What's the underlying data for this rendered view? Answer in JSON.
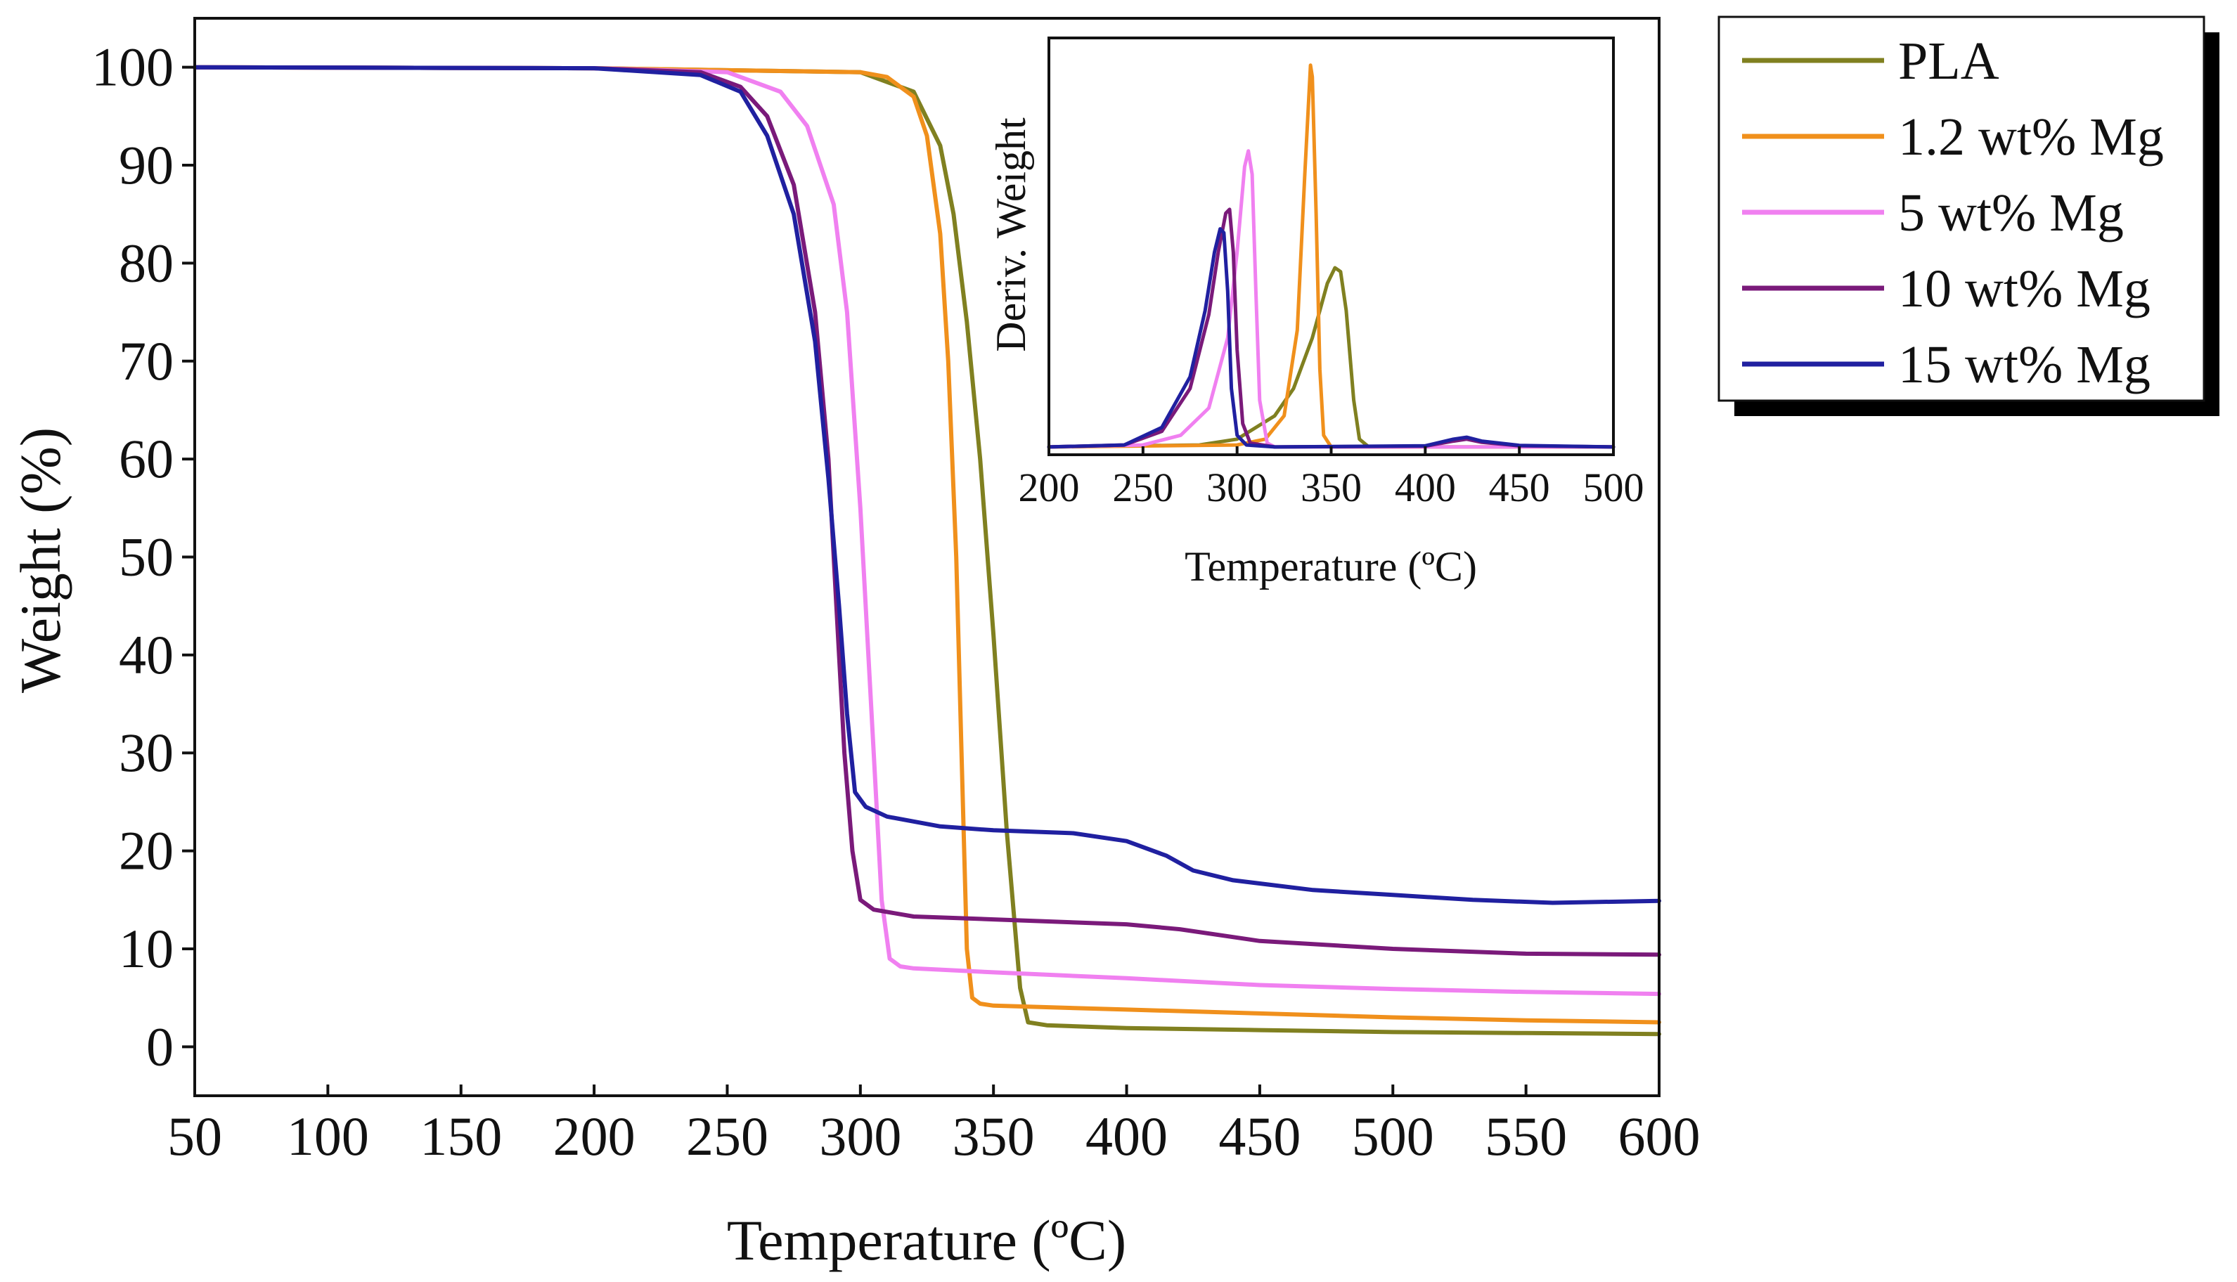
{
  "chart_data": [
    {
      "id": "main",
      "type": "line",
      "title": "",
      "xlabel": "Temperature (ºC)",
      "ylabel": "Weight (%)",
      "xlim": [
        50,
        600
      ],
      "ylim": [
        -5,
        105
      ],
      "xticks": [
        50,
        100,
        150,
        200,
        250,
        300,
        350,
        400,
        450,
        500,
        550,
        600
      ],
      "yticks": [
        0,
        10,
        20,
        30,
        40,
        50,
        60,
        70,
        80,
        90,
        100
      ],
      "grid": false,
      "series": [
        {
          "name": "PLA",
          "color": "#808020",
          "x": [
            50,
            200,
            300,
            320,
            330,
            335,
            340,
            345,
            350,
            355,
            360,
            363,
            370,
            400,
            450,
            500,
            550,
            600
          ],
          "y": [
            100,
            99.9,
            99.5,
            97.5,
            92,
            85,
            74,
            60,
            42,
            22,
            6,
            2.5,
            2.2,
            1.9,
            1.7,
            1.5,
            1.4,
            1.3
          ]
        },
        {
          "name": "1.2 wt% Mg",
          "color": "#f0901c",
          "x": [
            50,
            200,
            300,
            310,
            320,
            325,
            330,
            333,
            336,
            338,
            340,
            342,
            345,
            350,
            400,
            450,
            500,
            550,
            600
          ],
          "y": [
            100,
            99.9,
            99.5,
            99,
            97,
            93,
            83,
            70,
            50,
            30,
            10,
            5,
            4.4,
            4.2,
            3.8,
            3.4,
            3,
            2.7,
            2.5
          ]
        },
        {
          "name": "5 wt% Mg",
          "color": "#f080f0",
          "x": [
            50,
            200,
            250,
            270,
            280,
            290,
            295,
            300,
            305,
            308,
            311,
            315,
            320,
            350,
            400,
            450,
            500,
            550,
            600
          ],
          "y": [
            100,
            99.9,
            99.5,
            97.5,
            94,
            86,
            75,
            55,
            30,
            15,
            9,
            8.2,
            8,
            7.6,
            7,
            6.3,
            5.9,
            5.6,
            5.4
          ]
        },
        {
          "name": "10 wt% Mg",
          "color": "#7a1a7a",
          "x": [
            50,
            200,
            240,
            255,
            265,
            275,
            283,
            288,
            291,
            294,
            297,
            300,
            305,
            320,
            350,
            400,
            420,
            450,
            500,
            550,
            600
          ],
          "y": [
            100,
            99.9,
            99.5,
            98,
            95,
            88,
            75,
            60,
            45,
            30,
            20,
            15,
            14,
            13.3,
            13,
            12.5,
            12,
            10.8,
            10,
            9.5,
            9.4
          ]
        },
        {
          "name": "15 wt% Mg",
          "color": "#2020a0",
          "x": [
            50,
            200,
            240,
            255,
            265,
            275,
            283,
            288,
            292,
            295,
            298,
            302,
            310,
            330,
            350,
            380,
            400,
            415,
            425,
            440,
            470,
            500,
            530,
            560,
            600
          ],
          "y": [
            100,
            99.9,
            99.2,
            97.5,
            93,
            85,
            72,
            58,
            45,
            34,
            26,
            24.5,
            23.5,
            22.5,
            22.1,
            21.8,
            21,
            19.5,
            18,
            17,
            16,
            15.5,
            15,
            14.7,
            14.9
          ]
        }
      ],
      "legend_position": "outside-right"
    },
    {
      "id": "inset",
      "type": "line",
      "title": "",
      "xlabel": "Temperature (ºC)",
      "ylabel": "Deriv. Weight",
      "xlim": [
        200,
        500
      ],
      "ylim": [
        -0.02,
        1.05
      ],
      "xticks": [
        200,
        250,
        300,
        350,
        400,
        450,
        500
      ],
      "grid": false,
      "series": [
        {
          "name": "PLA",
          "color": "#808020",
          "x": [
            200,
            280,
            300,
            320,
            330,
            340,
            348,
            352,
            355,
            358,
            362,
            365,
            370,
            400,
            500
          ],
          "y": [
            0,
            0.005,
            0.02,
            0.08,
            0.15,
            0.28,
            0.42,
            0.46,
            0.45,
            0.35,
            0.12,
            0.02,
            0,
            0,
            0
          ]
        },
        {
          "name": "1.2 wt% Mg",
          "color": "#f0901c",
          "x": [
            200,
            300,
            315,
            325,
            332,
            336,
            339,
            340,
            342,
            344,
            346,
            350,
            400,
            500
          ],
          "y": [
            0,
            0.005,
            0.02,
            0.08,
            0.3,
            0.7,
            0.98,
            0.95,
            0.6,
            0.2,
            0.03,
            0,
            0,
            0
          ]
        },
        {
          "name": "5 wt% Mg",
          "color": "#f080f0",
          "x": [
            200,
            250,
            270,
            285,
            295,
            300,
            304,
            306,
            308,
            310,
            312,
            316,
            320,
            400,
            500
          ],
          "y": [
            0,
            0.005,
            0.03,
            0.1,
            0.28,
            0.5,
            0.72,
            0.76,
            0.7,
            0.4,
            0.12,
            0.01,
            0,
            0,
            0
          ]
        },
        {
          "name": "10 wt% Mg",
          "color": "#7a1a7a",
          "x": [
            200,
            240,
            260,
            275,
            285,
            290,
            294,
            296,
            298,
            300,
            303,
            307,
            320,
            400,
            415,
            422,
            430,
            450,
            500
          ],
          "y": [
            0,
            0.005,
            0.04,
            0.15,
            0.34,
            0.5,
            0.6,
            0.61,
            0.5,
            0.25,
            0.06,
            0.01,
            0,
            0.002,
            0.015,
            0.02,
            0.012,
            0.003,
            0
          ]
        },
        {
          "name": "15 wt% Mg",
          "color": "#2020a0",
          "x": [
            200,
            240,
            260,
            275,
            283,
            288,
            291,
            293,
            295,
            297,
            300,
            305,
            320,
            400,
            415,
            422,
            430,
            450,
            500
          ],
          "y": [
            0,
            0.005,
            0.05,
            0.18,
            0.35,
            0.5,
            0.56,
            0.55,
            0.4,
            0.15,
            0.03,
            0.005,
            0,
            0.003,
            0.02,
            0.025,
            0.015,
            0.004,
            0
          ]
        }
      ]
    }
  ]
}
